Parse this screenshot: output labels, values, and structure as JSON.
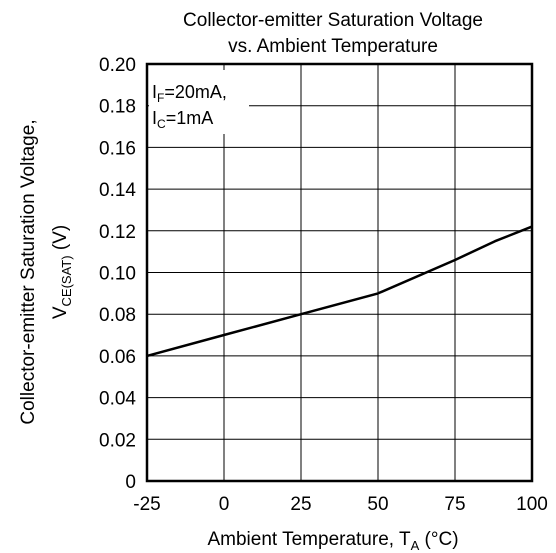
{
  "chart_data": {
    "type": "line",
    "title_line1": "Collector-emitter Saturation Voltage",
    "title_line2": "vs. Ambient Temperature",
    "xlabel": "Ambient Temperature, T",
    "xlabel_sub": "A",
    "xlabel_unit": " (°C)",
    "ylabel_line1": "Collector-emitter Saturation Voltage,",
    "ylabel_v": "V",
    "ylabel_sub": "CE(SAT)",
    "ylabel_unit": " (V)",
    "xlim": [
      -25,
      100
    ],
    "ylim": [
      0,
      0.2
    ],
    "xticks": [
      -25,
      0,
      25,
      50,
      75,
      100
    ],
    "yticks": [
      0,
      0.02,
      0.04,
      0.06,
      0.08,
      0.1,
      0.12,
      0.14,
      0.16,
      0.18,
      0.2
    ],
    "ytick_labels": [
      "0",
      "0.02",
      "0.04",
      "0.06",
      "0.08",
      "0.10",
      "0.12",
      "0.14",
      "0.16",
      "0.18",
      "0.20"
    ],
    "grid": true,
    "annotation": {
      "line1_main": "I",
      "line1_sub": "F",
      "line1_rest": "=20mA,",
      "line2_main": "I",
      "line2_sub": "C",
      "line2_rest": "=1mA"
    },
    "series": [
      {
        "x": [
          -25,
          0,
          25,
          50,
          75,
          88,
          100
        ],
        "y": [
          0.06,
          0.07,
          0.08,
          0.09,
          0.106,
          0.115,
          0.122
        ]
      }
    ]
  }
}
